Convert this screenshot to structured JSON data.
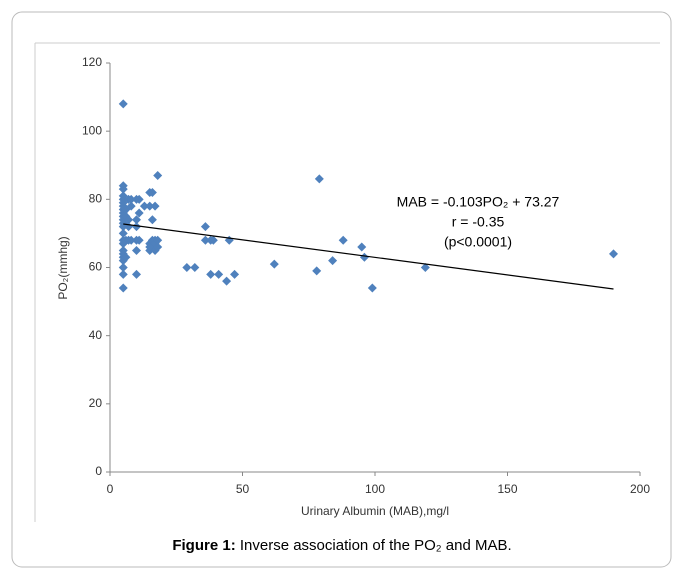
{
  "chart_data": {
    "type": "scatter",
    "x_label": "Urinary Albumin (MAB),mg/l",
    "y_label": "PO₂(mmhg)",
    "xlim": [
      0,
      200
    ],
    "ylim": [
      0,
      120
    ],
    "xticks": [
      0,
      50,
      100,
      150,
      200
    ],
    "yticks": [
      0,
      20,
      40,
      60,
      80,
      100,
      120
    ],
    "color": "#4f81bd",
    "x": [
      5,
      5,
      5,
      5,
      5,
      5,
      5,
      5,
      5,
      5,
      5,
      5,
      5,
      5,
      5,
      5,
      5,
      5,
      5,
      5,
      5,
      5,
      5,
      6,
      6,
      6,
      6,
      7,
      7,
      7,
      7,
      8,
      8,
      8,
      10,
      10,
      10,
      10,
      10,
      10,
      11,
      11,
      11,
      13,
      15,
      15,
      15,
      15,
      15,
      16,
      16,
      16,
      16,
      17,
      17,
      17,
      17,
      18,
      18,
      18,
      29,
      32,
      36,
      36,
      38,
      38,
      39,
      41,
      44,
      45,
      47,
      62,
      78,
      79,
      84,
      88,
      95,
      96,
      99,
      119,
      190
    ],
    "values": [
      108,
      84,
      83,
      81,
      80,
      79,
      78,
      77,
      76,
      75,
      74,
      73,
      72,
      70,
      68,
      67,
      65,
      64,
      63,
      62,
      60,
      58,
      54,
      77,
      75,
      68,
      63,
      80,
      74,
      72,
      68,
      80,
      78,
      68,
      80,
      74,
      72,
      68,
      65,
      58,
      80,
      76,
      68,
      78,
      82,
      78,
      67,
      66,
      65,
      82,
      74,
      68,
      66,
      78,
      68,
      67,
      65,
      87,
      68,
      66,
      60,
      60,
      72,
      68,
      58,
      68,
      68,
      58,
      56,
      68,
      58,
      61,
      59,
      86,
      62,
      68,
      66,
      63,
      54,
      60,
      64
    ],
    "trendline": {
      "x": [
        5,
        190
      ],
      "values": [
        72.76,
        53.7
      ],
      "color": "#000000"
    },
    "annotations": [
      "MAB = -0.103PO₂ + 73.27",
      "r = -0.35",
      "(p<0.0001)"
    ]
  },
  "caption": {
    "label": "Figure 1:",
    "text": "Inverse association of the PO₂ and MAB."
  }
}
